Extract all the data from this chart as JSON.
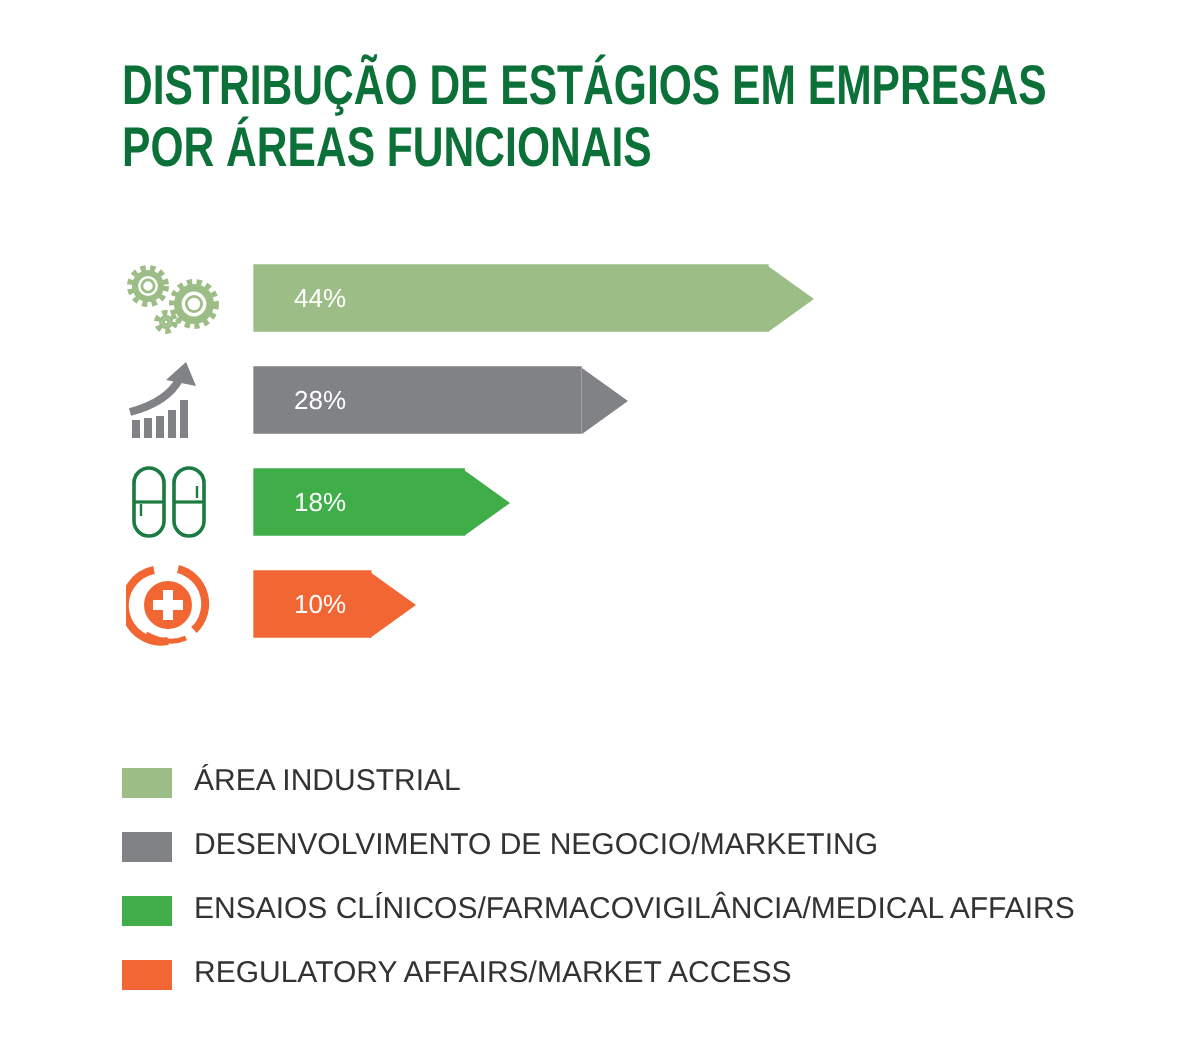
{
  "chart_data": {
    "type": "bar",
    "orientation": "horizontal",
    "stacked": true,
    "title": "DISTRIBUÇÃO DE ESTÁGIOS EM EMPRESAS POR ÁREAS FUNCIONAIS",
    "categories": [
      null,
      null,
      null,
      null
    ],
    "series": [
      {
        "name": "ÁREA INDUSTRIAL",
        "color": "#9dbd87",
        "values": [
          44,
          null,
          null,
          null
        ],
        "value_labels": [
          "44%",
          null,
          null,
          null
        ]
      },
      {
        "name": "DESENVOLVIMENTO DE NEGOCIO/MARKETING",
        "color": "#808285",
        "values": [
          null,
          28,
          null,
          null
        ],
        "value_labels": [
          null,
          "28%",
          null,
          null
        ]
      },
      {
        "name": "ENSAIOS CLÍNICOS/FARMACOVIGILÂNCIA/MEDICAL AFFAIRS",
        "color": "#3fae49",
        "values": [
          null,
          null,
          18,
          null
        ],
        "value_labels": [
          null,
          null,
          "18%",
          null
        ]
      },
      {
        "name": "REGULATORY AFFAIRS/MARKET ACCESS",
        "color": "#f26633",
        "values": [
          null,
          null,
          null,
          10
        ],
        "value_labels": [
          null,
          null,
          null,
          "10%"
        ]
      }
    ],
    "legend": "bottom",
    "tick_labels": false
  }
}
